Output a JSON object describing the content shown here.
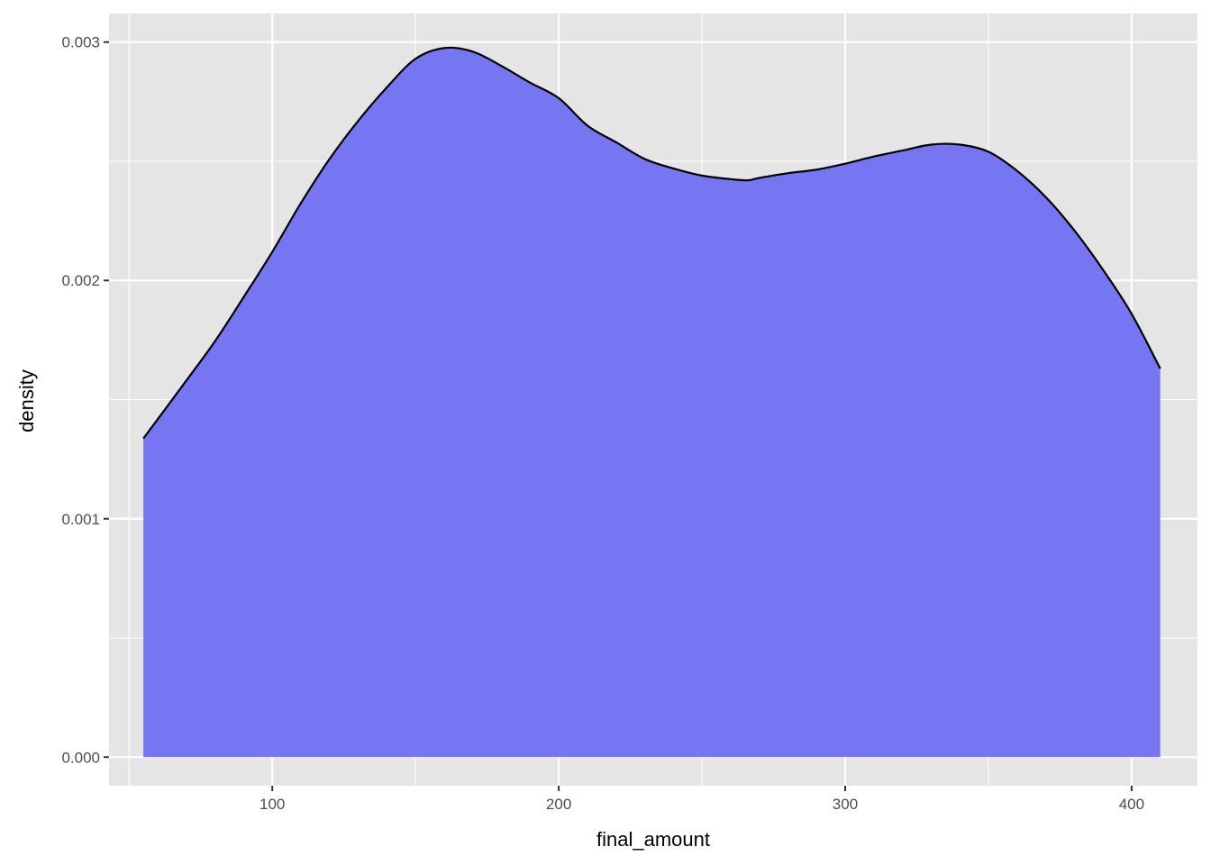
{
  "chart_data": {
    "type": "area",
    "subtype": "density",
    "title": "",
    "xlabel": "final_amount",
    "ylabel": "density",
    "xlim": [
      43,
      423
    ],
    "ylim": [
      -0.00012,
      0.00312
    ],
    "x_ticks": [
      100,
      200,
      300,
      400
    ],
    "x_tick_labels": [
      "100",
      "200",
      "300",
      "400"
    ],
    "x_minor_ticks": [
      50,
      150,
      250,
      350
    ],
    "y_ticks": [
      0.0,
      0.001,
      0.002,
      0.003
    ],
    "y_tick_labels": [
      "0.000",
      "0.001",
      "0.002",
      "0.003"
    ],
    "y_minor_ticks": [
      0.0005,
      0.0015,
      0.0025
    ],
    "grid": true,
    "legend": "none",
    "fill_color": "#7373f3",
    "line_color": "#000000",
    "panel_color": "#e5e5e5",
    "series": [
      {
        "x": [
          55,
          70,
          80,
          90,
          100,
          110,
          120,
          130,
          140,
          150,
          160,
          170,
          180,
          190,
          200,
          210,
          220,
          230,
          240,
          250,
          260,
          266,
          270,
          280,
          290,
          300,
          310,
          320,
          330,
          340,
          350,
          360,
          370,
          380,
          390,
          400,
          410
        ],
        "y": [
          0.001337,
          0.00158,
          0.001745,
          0.00193,
          0.00212,
          0.002325,
          0.00251,
          0.00267,
          0.00281,
          0.00293,
          0.002975,
          0.00296,
          0.0029,
          0.00283,
          0.002765,
          0.00265,
          0.00258,
          0.00251,
          0.00247,
          0.00244,
          0.002425,
          0.00242,
          0.00243,
          0.00245,
          0.002465,
          0.00249,
          0.00252,
          0.002545,
          0.00257,
          0.00257,
          0.00254,
          0.00246,
          0.00235,
          0.00221,
          0.002045,
          0.00186,
          0.00163
        ]
      }
    ]
  }
}
